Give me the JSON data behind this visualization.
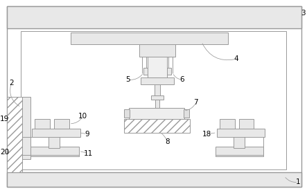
{
  "bg_color": "#ffffff",
  "lc": "#999999",
  "lc2": "#777777",
  "figsize": [
    4.43,
    2.79
  ],
  "dpi": 100
}
